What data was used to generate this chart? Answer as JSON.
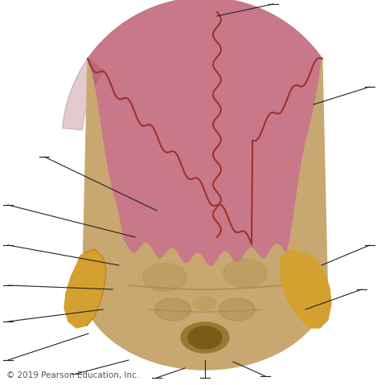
{
  "background_color": "#ffffff",
  "parietal_color": "#c87888",
  "occipital_color": "#c8a870",
  "occipital_dark": "#b08040",
  "temporal_color": "#d4a030",
  "suture_color": "#a03030",
  "annotation_color": "#222222",
  "annotation_lw": 0.8,
  "copyright_text": "© 2019 Pearson Education, Inc.",
  "copyright_fontsize": 7.5
}
